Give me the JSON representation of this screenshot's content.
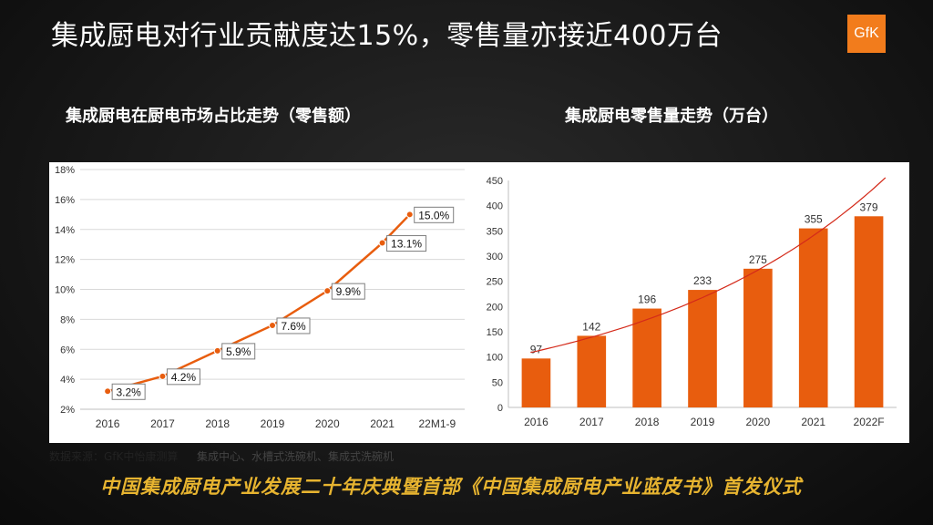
{
  "page": {
    "title": "集成厨电对行业贡献度达15%，零售量亦接近400万台",
    "logo_text": "GfK",
    "footnote": "数据来源：GfK中怡康测算",
    "ghost_text": "集成中心、水槽式洗碗机、集成式洗碗机",
    "banner": "中国集成厨电产业发展二十年庆典暨首部《中国集成厨电产业蓝皮书》首发仪式",
    "colors": {
      "accent": "#e85d0e",
      "banner": "#e7b430",
      "trend": "#d42a1a"
    }
  },
  "chart_data": [
    {
      "type": "line",
      "title": "集成厨电在厨电市场占比走势（零售额）",
      "categories": [
        "2016",
        "2017",
        "2018",
        "2019",
        "2020",
        "2021",
        "22M1-9"
      ],
      "values": [
        3.2,
        4.2,
        5.9,
        7.6,
        9.9,
        13.1,
        15.0
      ],
      "data_labels": [
        "3.2%",
        "4.2%",
        "5.9%",
        "7.6%",
        "9.9%",
        "13.1%",
        "15.0%"
      ],
      "ylim": [
        2,
        18
      ],
      "yticks": [
        "2%",
        "4%",
        "6%",
        "8%",
        "10%",
        "12%",
        "14%",
        "16%",
        "18%"
      ],
      "grid": true
    },
    {
      "type": "bar",
      "title": "集成厨电零售量走势（万台）",
      "categories": [
        "2016",
        "2017",
        "2018",
        "2019",
        "2020",
        "2021",
        "2022F"
      ],
      "values": [
        97,
        142,
        196,
        233,
        275,
        355,
        379
      ],
      "data_labels": [
        "97",
        "142",
        "196",
        "233",
        "275",
        "355",
        "379"
      ],
      "ylim": [
        0,
        450
      ],
      "yticks": [
        "0",
        "50",
        "100",
        "150",
        "200",
        "250",
        "300",
        "350",
        "400",
        "450"
      ],
      "trendline": true,
      "grid": false
    }
  ]
}
